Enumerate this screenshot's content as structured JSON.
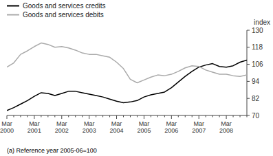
{
  "chart_data": {
    "type": "line",
    "ylabel": "index",
    "footnote": "(a) Reference year 2005-06=100",
    "categories": [
      "Mar\n2000",
      null,
      null,
      null,
      "Mar\n2001",
      null,
      null,
      null,
      "Mar\n2002",
      null,
      null,
      null,
      "Mar\n2003",
      null,
      null,
      null,
      "Mar\n2004",
      null,
      null,
      null,
      "Mar\n2005",
      null,
      null,
      null,
      "Mar\n2006",
      null,
      null,
      null,
      "Mar\n2007",
      null,
      null,
      null,
      "Mar\n2008",
      null,
      null,
      null
    ],
    "series": [
      {
        "name": "Goods and services credits",
        "color": "#000000",
        "values": [
          73.5,
          75.5,
          78,
          80.5,
          83.5,
          86,
          85.5,
          84,
          85.5,
          87,
          87,
          86,
          85,
          84,
          83,
          81.5,
          80,
          79,
          79.5,
          80.5,
          83,
          84.5,
          85.5,
          86.5,
          89.5,
          93.5,
          97.5,
          101,
          104,
          105.5,
          106.5,
          104.5,
          104,
          105,
          107.5,
          109
        ]
      },
      {
        "name": "Goods and services debits",
        "color": "#aaaaaa",
        "values": [
          104,
          107,
          113,
          115.5,
          118.5,
          121,
          120,
          118,
          118.5,
          117.5,
          116,
          114,
          113,
          113,
          112,
          111,
          107.5,
          103,
          95.5,
          93,
          95,
          97,
          98.5,
          98,
          99,
          101,
          103.5,
          105,
          104.5,
          102,
          100.5,
          99,
          99,
          98,
          97.5,
          98.5
        ]
      }
    ],
    "ylim": [
      70,
      130
    ],
    "yticks": [
      70,
      82,
      94,
      106,
      118,
      130
    ],
    "legend": "upper left",
    "grid": false
  }
}
